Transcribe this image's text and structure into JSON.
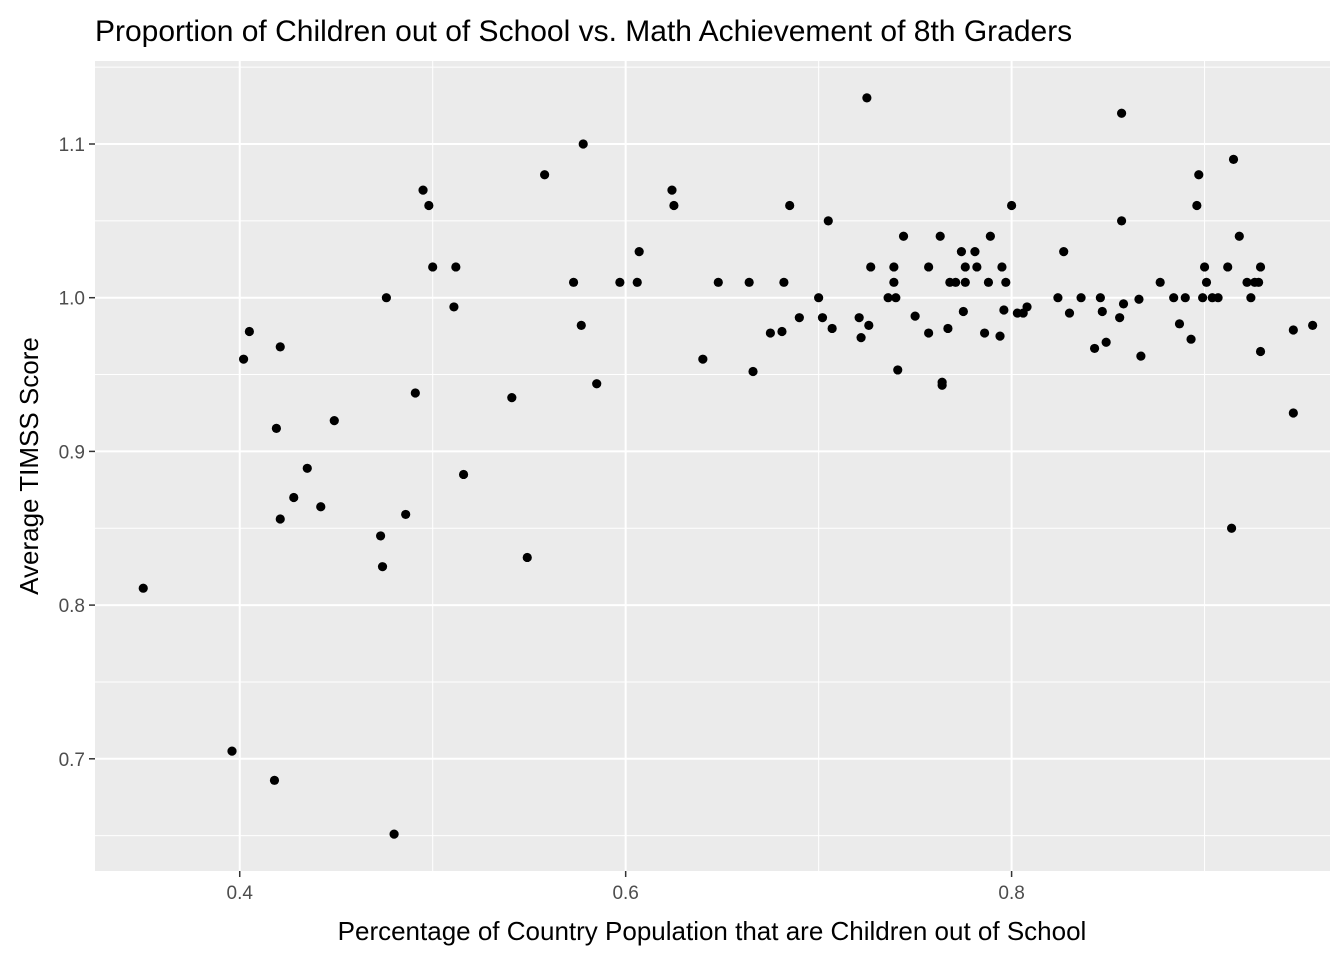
{
  "chart_data": {
    "type": "scatter",
    "title": "Proportion of Children out of School vs. Math Achievement of 8th Graders",
    "xlabel": "Percentage of Country Population that are Children out of School",
    "ylabel": "Average TIMSS Score",
    "xlim": [
      0.325,
      0.965
    ],
    "ylim": [
      0.627,
      1.154
    ],
    "x_ticks": [
      0.4,
      0.6,
      0.8
    ],
    "x_tick_labels": [
      "0.4",
      "0.6",
      "0.8"
    ],
    "y_ticks": [
      0.7,
      0.8,
      0.9,
      1.0,
      1.1
    ],
    "y_tick_labels": [
      "0.7",
      "0.8",
      "0.9",
      "1.0",
      "1.1"
    ],
    "grid": true,
    "panel_color": "#ebebeb",
    "grid_color": "#ffffff",
    "point_color": "#000000",
    "points": [
      [
        0.35,
        0.811
      ],
      [
        0.396,
        0.705
      ],
      [
        0.402,
        0.96
      ],
      [
        0.405,
        0.978
      ],
      [
        0.418,
        0.686
      ],
      [
        0.419,
        0.915
      ],
      [
        0.421,
        0.968
      ],
      [
        0.421,
        0.856
      ],
      [
        0.428,
        0.87
      ],
      [
        0.435,
        0.889
      ],
      [
        0.442,
        0.864
      ],
      [
        0.449,
        0.92
      ],
      [
        0.473,
        0.845
      ],
      [
        0.474,
        0.825
      ],
      [
        0.476,
        1.0
      ],
      [
        0.48,
        0.651
      ],
      [
        0.486,
        0.859
      ],
      [
        0.491,
        0.938
      ],
      [
        0.495,
        1.07
      ],
      [
        0.498,
        1.06
      ],
      [
        0.5,
        1.02
      ],
      [
        0.511,
        0.994
      ],
      [
        0.512,
        1.02
      ],
      [
        0.516,
        0.885
      ],
      [
        0.541,
        0.935
      ],
      [
        0.549,
        0.831
      ],
      [
        0.558,
        1.08
      ],
      [
        0.573,
        1.01
      ],
      [
        0.577,
        0.982
      ],
      [
        0.578,
        1.1
      ],
      [
        0.585,
        0.944
      ],
      [
        0.597,
        1.01
      ],
      [
        0.606,
        1.01
      ],
      [
        0.607,
        1.03
      ],
      [
        0.624,
        1.07
      ],
      [
        0.625,
        1.06
      ],
      [
        0.64,
        0.96
      ],
      [
        0.648,
        1.01
      ],
      [
        0.664,
        1.01
      ],
      [
        0.666,
        0.952
      ],
      [
        0.675,
        0.977
      ],
      [
        0.681,
        0.978
      ],
      [
        0.682,
        1.01
      ],
      [
        0.685,
        1.06
      ],
      [
        0.69,
        0.987
      ],
      [
        0.7,
        1.0
      ],
      [
        0.702,
        0.987
      ],
      [
        0.705,
        1.05
      ],
      [
        0.707,
        0.98
      ],
      [
        0.721,
        0.987
      ],
      [
        0.722,
        0.974
      ],
      [
        0.725,
        1.13
      ],
      [
        0.726,
        0.982
      ],
      [
        0.727,
        1.02
      ],
      [
        0.736,
        1.0
      ],
      [
        0.739,
        1.01
      ],
      [
        0.739,
        1.02
      ],
      [
        0.74,
        1.0
      ],
      [
        0.741,
        0.953
      ],
      [
        0.744,
        1.04
      ],
      [
        0.75,
        0.988
      ],
      [
        0.757,
        1.02
      ],
      [
        0.757,
        0.977
      ],
      [
        0.763,
        1.04
      ],
      [
        0.764,
        0.945
      ],
      [
        0.764,
        0.943
      ],
      [
        0.767,
        0.98
      ],
      [
        0.768,
        1.01
      ],
      [
        0.771,
        1.01
      ],
      [
        0.774,
        1.03
      ],
      [
        0.775,
        0.991
      ],
      [
        0.776,
        1.01
      ],
      [
        0.776,
        1.02
      ],
      [
        0.781,
        1.03
      ],
      [
        0.782,
        1.02
      ],
      [
        0.786,
        0.977
      ],
      [
        0.788,
        1.01
      ],
      [
        0.789,
        1.04
      ],
      [
        0.794,
        0.975
      ],
      [
        0.795,
        1.02
      ],
      [
        0.797,
        1.01
      ],
      [
        0.796,
        0.992
      ],
      [
        0.8,
        1.06
      ],
      [
        0.803,
        0.99
      ],
      [
        0.806,
        0.99
      ],
      [
        0.808,
        0.994
      ],
      [
        0.824,
        1.0
      ],
      [
        0.827,
        1.03
      ],
      [
        0.83,
        0.99
      ],
      [
        0.836,
        1.0
      ],
      [
        0.843,
        0.967
      ],
      [
        0.846,
        1.0
      ],
      [
        0.847,
        0.991
      ],
      [
        0.849,
        0.971
      ],
      [
        0.856,
        0.987
      ],
      [
        0.857,
        1.12
      ],
      [
        0.857,
        1.05
      ],
      [
        0.858,
        0.996
      ],
      [
        0.866,
        0.999
      ],
      [
        0.867,
        0.962
      ],
      [
        0.877,
        1.01
      ],
      [
        0.884,
        1.0
      ],
      [
        0.887,
        0.983
      ],
      [
        0.89,
        1.0
      ],
      [
        0.893,
        0.973
      ],
      [
        0.896,
        1.06
      ],
      [
        0.897,
        1.08
      ],
      [
        0.899,
        1.0
      ],
      [
        0.9,
        1.02
      ],
      [
        0.901,
        1.01
      ],
      [
        0.904,
        1.0
      ],
      [
        0.907,
        1.0
      ],
      [
        0.912,
        1.02
      ],
      [
        0.914,
        0.85
      ],
      [
        0.915,
        1.09
      ],
      [
        0.918,
        1.04
      ],
      [
        0.922,
        1.01
      ],
      [
        0.924,
        1.0
      ],
      [
        0.926,
        1.01
      ],
      [
        0.928,
        1.01
      ],
      [
        0.929,
        1.02
      ],
      [
        0.929,
        0.965
      ],
      [
        0.946,
        0.925
      ],
      [
        0.946,
        0.979
      ],
      [
        0.956,
        0.982
      ]
    ]
  }
}
